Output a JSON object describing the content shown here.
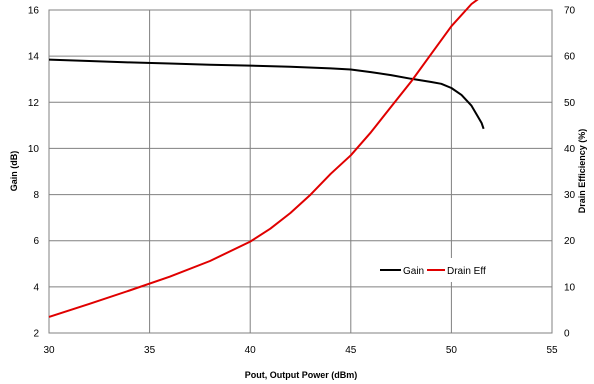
{
  "chart_data": {
    "type": "line",
    "title": "",
    "xlabel": "Pout, Output Power (dBm)",
    "ylabel": "Gain (dB)",
    "y2label": "Drain Efficiency (%)",
    "xlim": [
      30,
      55
    ],
    "ylim": [
      2,
      16
    ],
    "y2lim": [
      0,
      70
    ],
    "x_ticks": [
      30,
      35,
      40,
      45,
      50,
      55
    ],
    "y_ticks": [
      2,
      4,
      6,
      8,
      10,
      12,
      14,
      16
    ],
    "y2_ticks": [
      0,
      10,
      20,
      30,
      40,
      50,
      60,
      70
    ],
    "grid": true,
    "legend_position": "bottom-right",
    "series": [
      {
        "name": "Gain",
        "axis": "left",
        "color": "#000000",
        "x": [
          30,
          32,
          34,
          36,
          38,
          40,
          42,
          44,
          45,
          46,
          47,
          48,
          49,
          49.5,
          50,
          50.5,
          51,
          51.3,
          51.5,
          51.6
        ],
        "y": [
          13.85,
          13.79,
          13.73,
          13.68,
          13.63,
          13.59,
          13.54,
          13.47,
          13.42,
          13.31,
          13.18,
          13.02,
          12.88,
          12.8,
          12.62,
          12.32,
          11.85,
          11.4,
          11.1,
          10.85
        ]
      },
      {
        "name": "Drain Eff",
        "axis": "right",
        "color": "#e00000",
        "x": [
          30,
          32,
          34,
          36,
          38,
          40,
          41,
          42,
          43,
          44,
          45,
          46,
          47,
          48,
          49,
          50,
          51,
          51.5,
          51.7
        ],
        "y": [
          3.5,
          6.3,
          9.2,
          12.2,
          15.6,
          19.8,
          22.6,
          26.0,
          30.0,
          34.5,
          38.5,
          43.5,
          49.0,
          54.5,
          60.5,
          66.5,
          71.3,
          72.9,
          73.0
        ]
      }
    ]
  }
}
